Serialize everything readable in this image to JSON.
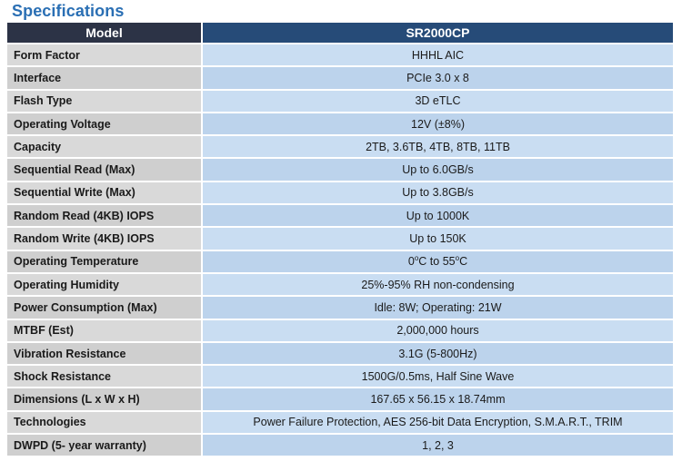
{
  "title": "Specifications",
  "table": {
    "header": {
      "label": "Model",
      "value": "SR2000CP"
    },
    "rows": [
      {
        "label": "Form Factor",
        "value": "HHHL AIC"
      },
      {
        "label": "Interface",
        "value": "PCIe 3.0 x 8"
      },
      {
        "label": "Flash Type",
        "value": "3D eTLC"
      },
      {
        "label": "Operating Voltage",
        "value": "12V (±8%)"
      },
      {
        "label": "Capacity",
        "value": "2TB, 3.6TB, 4TB, 8TB, 11TB"
      },
      {
        "label": "Sequential Read (Max)",
        "value": "Up to 6.0GB/s"
      },
      {
        "label": "Sequential Write (Max)",
        "value": "Up to 3.8GB/s"
      },
      {
        "label": "Random Read (4KB) IOPS",
        "value": "Up to 1000K"
      },
      {
        "label": "Random Write (4KB) IOPS",
        "value": "Up to 150K"
      },
      {
        "label": "Operating Temperature",
        "value_parts": [
          "0",
          "o",
          "C to 55",
          "o",
          "C"
        ]
      },
      {
        "label": "Operating Humidity",
        "value": "25%-95% RH non-condensing"
      },
      {
        "label": "Power Consumption (Max)",
        "value": "Idle: 8W; Operating: 21W"
      },
      {
        "label": "MTBF (Est)",
        "value": "2,000,000 hours"
      },
      {
        "label": "Vibration Resistance",
        "value": "3.1G (5-800Hz)"
      },
      {
        "label": "Shock Resistance",
        "value": "1500G/0.5ms, Half Sine Wave"
      },
      {
        "label": "Dimensions (L x W x H)",
        "value": "167.65 x 56.15 x 18.74mm"
      },
      {
        "label": "Technologies",
        "value": "Power Failure Protection, AES 256-bit Data Encryption, S.M.A.R.T., TRIM"
      },
      {
        "label": "DWPD (5- year warranty)",
        "value": "1, 2, 3"
      }
    ]
  }
}
